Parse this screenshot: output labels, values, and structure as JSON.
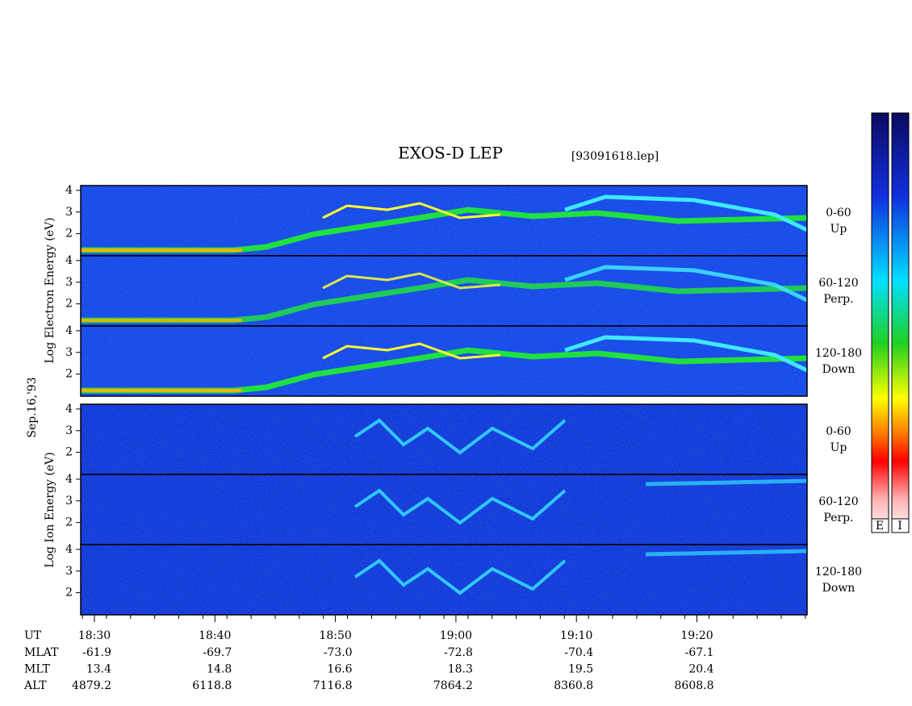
{
  "header": {
    "title": "EXOS-D LEP",
    "file": "[93091618.lep]"
  },
  "y_labels": {
    "electron": "Log Electron Energy (eV)",
    "date": "Sep.16,'93",
    "ion": "Log Ion Energy (eV)"
  },
  "panels": [
    {
      "species": "electron",
      "angle": "0-60",
      "direction": "Up",
      "yticks": [
        2,
        3,
        4
      ],
      "ylim": [
        0.98,
        4.22
      ]
    },
    {
      "species": "electron",
      "angle": "60-120",
      "direction": "Perp.",
      "yticks": [
        2,
        3,
        4
      ],
      "ylim": [
        0.98,
        4.22
      ]
    },
    {
      "species": "electron",
      "angle": "120-180",
      "direction": "Down",
      "yticks": [
        2,
        3,
        4
      ],
      "ylim": [
        0.98,
        4.22
      ]
    },
    {
      "species": "ion",
      "angle": "0-60",
      "direction": "Up",
      "yticks": [
        2,
        3,
        4
      ],
      "ylim": [
        0.98,
        4.22
      ]
    },
    {
      "species": "ion",
      "angle": "60-120",
      "direction": "Perp.",
      "yticks": [
        2,
        3,
        4
      ],
      "ylim": [
        0.98,
        4.22
      ]
    },
    {
      "species": "ion",
      "angle": "120-180",
      "direction": "Down",
      "yticks": [
        2,
        3,
        4
      ],
      "ylim": [
        0.98,
        4.22
      ]
    }
  ],
  "colorbar": {
    "labels": [
      "E",
      "I"
    ]
  },
  "time_axis": {
    "name": "UT",
    "labels": [
      "18:30",
      "18:40",
      "18:50",
      "19:00",
      "19:10",
      "19:20"
    ]
  },
  "ephemeris": [
    {
      "name": "MLAT",
      "values": [
        "-61.9",
        "-69.7",
        "-73.0",
        "-72.8",
        "-70.4",
        "-67.1"
      ]
    },
    {
      "name": "MLT",
      "values": [
        "13.4",
        "14.8",
        "16.6",
        "18.3",
        "19.5",
        "20.4"
      ]
    },
    {
      "name": "ALT",
      "values": [
        "4879.2",
        "6118.8",
        "7116.8",
        "7864.2",
        "8360.8",
        "8608.8"
      ]
    }
  ]
}
